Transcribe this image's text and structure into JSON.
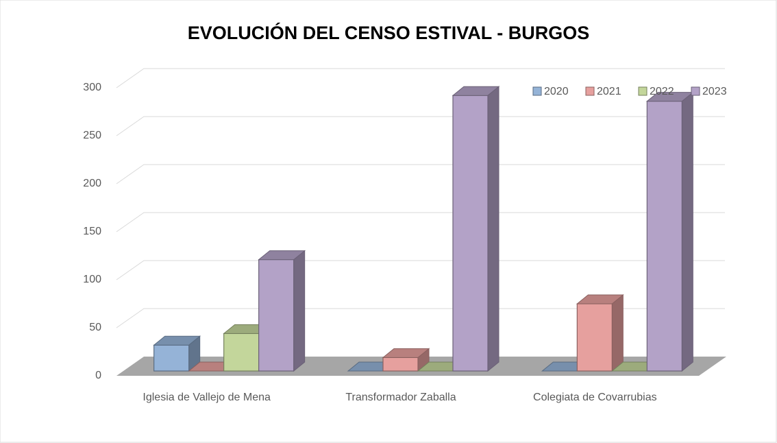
{
  "chart_data": {
    "type": "bar",
    "title": "EVOLUCIÓN DEL CENSO ESTIVAL - BURGOS",
    "categories": [
      "Iglesia de Vallejo de Mena",
      "Transformador Zaballa",
      "Colegiata de Covarrubias"
    ],
    "series": [
      {
        "name": "2020",
        "color": "#95b3d7",
        "values": [
          27,
          0,
          0
        ]
      },
      {
        "name": "2021",
        "color": "#e6a09e",
        "values": [
          0,
          14,
          70
        ]
      },
      {
        "name": "2022",
        "color": "#c3d69b",
        "values": [
          39,
          0,
          0
        ]
      },
      {
        "name": "2023",
        "color": "#b3a2c7",
        "values": [
          116,
          287,
          281
        ]
      }
    ],
    "ylim": [
      0,
      300
    ],
    "yticks": [
      0,
      50,
      100,
      150,
      200,
      250,
      300
    ],
    "grid": true,
    "legend": "top-right"
  }
}
